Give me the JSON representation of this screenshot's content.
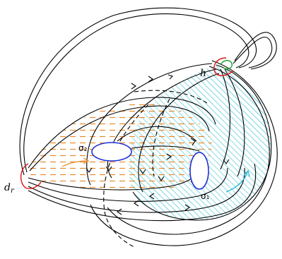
{
  "labels": {
    "dr": "d",
    "dr_sub": "r",
    "h": "h",
    "sigma2": "σ₂",
    "sigma1": "σ₁"
  },
  "colors": {
    "orange_hatch": "#e8892a",
    "cyan_hatch": "#22b8d0",
    "blue_curve": "#1f2fd6",
    "red_curve": "#e01515",
    "green_curve": "#1aa82a",
    "line": "#000000"
  }
}
